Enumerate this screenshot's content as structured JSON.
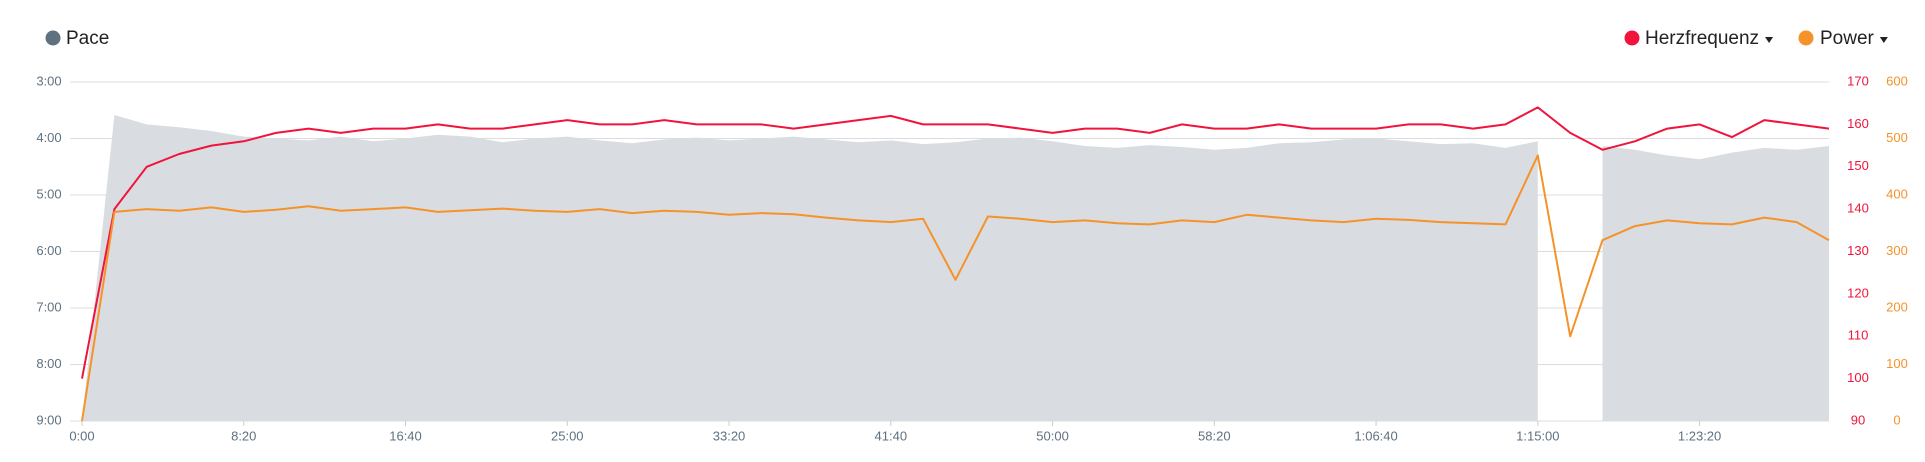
{
  "chart_data": {
    "type": "line",
    "legend": "top",
    "grid": true,
    "x": [
      0,
      100,
      200,
      300,
      400,
      500,
      600,
      700,
      800,
      900,
      1000,
      1100,
      1200,
      1300,
      1400,
      1500,
      1600,
      1700,
      1800,
      1900,
      2000,
      2100,
      2200,
      2300,
      2400,
      2500,
      2600,
      2700,
      2800,
      2900,
      3000,
      3100,
      3200,
      3300,
      3400,
      3500,
      3600,
      3700,
      3800,
      3900,
      4000,
      4100,
      4200,
      4300,
      4400,
      4500,
      4600,
      4700,
      4800,
      4900,
      5000,
      5100,
      5200,
      5300,
      5400
    ],
    "xlim": [
      0,
      5400
    ],
    "xticks": [
      {
        "value": 0,
        "label": "0:00"
      },
      {
        "value": 500,
        "label": "8:20"
      },
      {
        "value": 1000,
        "label": "16:40"
      },
      {
        "value": 1500,
        "label": "25:00"
      },
      {
        "value": 2000,
        "label": "33:20"
      },
      {
        "value": 2500,
        "label": "41:40"
      },
      {
        "value": 3000,
        "label": "50:00"
      },
      {
        "value": 3500,
        "label": "58:20"
      },
      {
        "value": 4000,
        "label": "1:06:40"
      },
      {
        "value": 4500,
        "label": "1:15:00"
      },
      {
        "value": 5000,
        "label": "1:23:20"
      }
    ],
    "ylim": [
      540,
      180
    ],
    "yticks": [
      {
        "value": 180,
        "label": "3:00"
      },
      {
        "value": 240,
        "label": "4:00"
      },
      {
        "value": 300,
        "label": "5:00"
      },
      {
        "value": 360,
        "label": "6:00"
      },
      {
        "value": 420,
        "label": "7:00"
      },
      {
        "value": 480,
        "label": "8:00"
      },
      {
        "value": 540,
        "label": "9:00"
      }
    ],
    "y2lim": [
      90,
      170
    ],
    "y2ticks": [
      90,
      100,
      110,
      120,
      130,
      140,
      150,
      160,
      170
    ],
    "y3lim": [
      0,
      600
    ],
    "y3ticks": [
      0,
      100,
      200,
      300,
      400,
      500,
      600
    ],
    "series": [
      {
        "name": "Pace",
        "color": "#5f7180",
        "fill": "#d9dde1",
        "kind": "area",
        "axis": "y",
        "values": [
          540,
          215,
          225,
          228,
          232,
          238,
          240,
          242,
          238,
          243,
          240,
          236,
          238,
          244,
          240,
          238,
          242,
          245,
          241,
          239,
          242,
          240,
          238,
          241,
          244,
          242,
          246,
          244,
          240,
          239,
          243,
          248,
          250,
          247,
          249,
          252,
          250,
          245,
          244,
          241,
          240,
          243,
          246,
          245,
          250,
          243,
          null,
          248,
          252,
          258,
          262,
          255,
          250,
          252,
          248
        ]
      },
      {
        "name": "Herzfrequenz",
        "color": "#f0143c",
        "kind": "line",
        "axis": "y2",
        "values": [
          100,
          140,
          150,
          153,
          155,
          156,
          158,
          159,
          158,
          159,
          159,
          160,
          159,
          159,
          160,
          161,
          160,
          160,
          161,
          160,
          160,
          160,
          159,
          160,
          161,
          162,
          160,
          160,
          160,
          159,
          158,
          159,
          159,
          158,
          160,
          159,
          159,
          160,
          159,
          159,
          159,
          160,
          160,
          159,
          160,
          164,
          158,
          154,
          156,
          159,
          160,
          157,
          161,
          160,
          159
        ]
      },
      {
        "name": "Power",
        "color": "#f5922a",
        "kind": "line",
        "axis": "y3",
        "values": [
          0,
          370,
          375,
          372,
          378,
          370,
          374,
          380,
          372,
          375,
          378,
          370,
          373,
          376,
          372,
          370,
          375,
          368,
          372,
          370,
          365,
          368,
          366,
          360,
          355,
          352,
          358,
          250,
          362,
          358,
          352,
          355,
          350,
          348,
          355,
          352,
          365,
          360,
          355,
          352,
          358,
          356,
          352,
          350,
          348,
          470,
          150,
          320,
          345,
          355,
          350,
          348,
          360,
          352,
          320
        ]
      }
    ]
  }
}
